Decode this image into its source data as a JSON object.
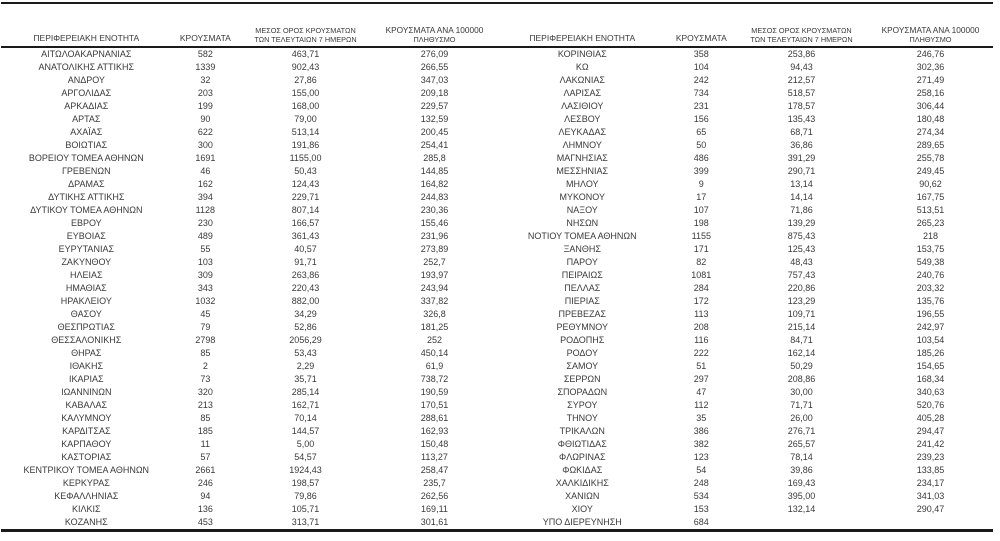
{
  "colors": {
    "background": "#ffffff",
    "text": "#3a3a3a",
    "line": "#1a1a1a"
  },
  "table": {
    "headers": {
      "region": "ΠΕΡΙΦΕΡΕΙΑΚΗ ΕΝΟΤΗΤΑ",
      "cases": "ΚΡΟΥΣΜΑΤΑ",
      "avg7_line1": "ΜΕΣΟΣ ΟΡΟΣ ΚΡΟΥΣΜΑΤΩΝ",
      "avg7_line2": "ΤΩΝ ΤΕΛΕΥΤΑΙΩΝ 7 ΗΜΕΡΩΝ",
      "per100k_line1": "ΚΡΟΥΣΜΑΤΑ ΑΝΑ 100000",
      "per100k_line2": "ΠΛΗΘΥΣΜΟ"
    },
    "left_rows": [
      [
        "ΑΙΤΩΛΟΑΚΑΡΝΑΝΙΑΣ",
        "582",
        "463,71",
        "276,09"
      ],
      [
        "ΑΝΑΤΟΛΙΚΗΣ ΑΤΤΙΚΗΣ",
        "1339",
        "902,43",
        "266,55"
      ],
      [
        "ΑΝΔΡΟΥ",
        "32",
        "27,86",
        "347,03"
      ],
      [
        "ΑΡΓΟΛΙΔΑΣ",
        "203",
        "155,00",
        "209,18"
      ],
      [
        "ΑΡΚΑΔΙΑΣ",
        "199",
        "168,00",
        "229,57"
      ],
      [
        "ΑΡΤΑΣ",
        "90",
        "79,00",
        "132,59"
      ],
      [
        "ΑΧΑΪΑΣ",
        "622",
        "513,14",
        "200,45"
      ],
      [
        "ΒΟΙΩΤΙΑΣ",
        "300",
        "191,86",
        "254,41"
      ],
      [
        "ΒΟΡΕΙΟΥ ΤΟΜΕΑ ΑΘΗΝΩΝ",
        "1691",
        "1155,00",
        "285,8"
      ],
      [
        "ΓΡΕΒΕΝΩΝ",
        "46",
        "50,43",
        "144,85"
      ],
      [
        "ΔΡΑΜΑΣ",
        "162",
        "124,43",
        "164,82"
      ],
      [
        "ΔΥΤΙΚΗΣ ΑΤΤΙΚΗΣ",
        "394",
        "229,71",
        "244,83"
      ],
      [
        "ΔΥΤΙΚΟΥ ΤΟΜΕΑ ΑΘΗΝΩΝ",
        "1128",
        "807,14",
        "230,36"
      ],
      [
        "ΕΒΡΟΥ",
        "230",
        "166,57",
        "155,46"
      ],
      [
        "ΕΥΒΟΙΑΣ",
        "489",
        "361,43",
        "231,96"
      ],
      [
        "ΕΥΡΥΤΑΝΙΑΣ",
        "55",
        "40,57",
        "273,89"
      ],
      [
        "ΖΑΚΥΝΘΟΥ",
        "103",
        "91,71",
        "252,7"
      ],
      [
        "ΗΛΕΙΑΣ",
        "309",
        "263,86",
        "193,97"
      ],
      [
        "ΗΜΑΘΙΑΣ",
        "343",
        "220,43",
        "243,94"
      ],
      [
        "ΗΡΑΚΛΕΙΟΥ",
        "1032",
        "882,00",
        "337,82"
      ],
      [
        "ΘΑΣΟΥ",
        "45",
        "34,29",
        "326,8"
      ],
      [
        "ΘΕΣΠΡΩΤΙΑΣ",
        "79",
        "52,86",
        "181,25"
      ],
      [
        "ΘΕΣΣΑΛΟΝΙΚΗΣ",
        "2798",
        "2056,29",
        "252"
      ],
      [
        "ΘΗΡΑΣ",
        "85",
        "53,43",
        "450,14"
      ],
      [
        "ΙΘΑΚΗΣ",
        "2",
        "2,29",
        "61,9"
      ],
      [
        "ΙΚΑΡΙΑΣ",
        "73",
        "35,71",
        "738,72"
      ],
      [
        "ΙΩΑΝΝΙΝΩΝ",
        "320",
        "285,14",
        "190,59"
      ],
      [
        "ΚΑΒΑΛΑΣ",
        "213",
        "162,71",
        "170,51"
      ],
      [
        "ΚΑΛΥΜΝΟΥ",
        "85",
        "70,14",
        "288,61"
      ],
      [
        "ΚΑΡΔΙΤΣΑΣ",
        "185",
        "144,57",
        "162,93"
      ],
      [
        "ΚΑΡΠΑΘΟΥ",
        "11",
        "5,00",
        "150,48"
      ],
      [
        "ΚΑΣΤΟΡΙΑΣ",
        "57",
        "54,57",
        "113,27"
      ],
      [
        "ΚΕΝΤΡΙΚΟΥ ΤΟΜΕΑ ΑΘΗΝΩΝ",
        "2661",
        "1924,43",
        "258,47"
      ],
      [
        "ΚΕΡΚΥΡΑΣ",
        "246",
        "198,57",
        "235,7"
      ],
      [
        "ΚΕΦΑΛΛΗΝΙΑΣ",
        "94",
        "79,86",
        "262,56"
      ],
      [
        "ΚΙΛΚΙΣ",
        "136",
        "105,71",
        "169,11"
      ],
      [
        "ΚΟΖΑΝΗΣ",
        "453",
        "313,71",
        "301,61"
      ]
    ],
    "right_rows": [
      [
        "ΚΟΡΙΝΘΙΑΣ",
        "358",
        "253,86",
        "246,76"
      ],
      [
        "ΚΩ",
        "104",
        "94,43",
        "302,36"
      ],
      [
        "ΛΑΚΩΝΙΑΣ",
        "242",
        "212,57",
        "271,49"
      ],
      [
        "ΛΑΡΙΣΑΣ",
        "734",
        "518,57",
        "258,16"
      ],
      [
        "ΛΑΣΙΘΙΟΥ",
        "231",
        "178,57",
        "306,44"
      ],
      [
        "ΛΕΣΒΟΥ",
        "156",
        "135,43",
        "180,48"
      ],
      [
        "ΛΕΥΚΑΔΑΣ",
        "65",
        "68,71",
        "274,34"
      ],
      [
        "ΛΗΜΝΟΥ",
        "50",
        "36,86",
        "289,65"
      ],
      [
        "ΜΑΓΝΗΣΙΑΣ",
        "486",
        "391,29",
        "255,78"
      ],
      [
        "ΜΕΣΣΗΝΙΑΣ",
        "399",
        "290,71",
        "249,45"
      ],
      [
        "ΜΗΛΟΥ",
        "9",
        "13,14",
        "90,62"
      ],
      [
        "ΜΥΚΟΝΟΥ",
        "17",
        "14,14",
        "167,75"
      ],
      [
        "ΝΑΞΟΥ",
        "107",
        "71,86",
        "513,51"
      ],
      [
        "ΝΗΣΩΝ",
        "198",
        "139,29",
        "265,23"
      ],
      [
        "ΝΟΤΙΟΥ ΤΟΜΕΑ ΑΘΗΝΩΝ",
        "1155",
        "875,43",
        "218"
      ],
      [
        "ΞΑΝΘΗΣ",
        "171",
        "125,43",
        "153,75"
      ],
      [
        "ΠΑΡΟΥ",
        "82",
        "48,43",
        "549,38"
      ],
      [
        "ΠΕΙΡΑΙΩΣ",
        "1081",
        "757,43",
        "240,76"
      ],
      [
        "ΠΕΛΛΑΣ",
        "284",
        "220,86",
        "203,32"
      ],
      [
        "ΠΙΕΡΙΑΣ",
        "172",
        "123,29",
        "135,76"
      ],
      [
        "ΠΡΕΒΕΖΑΣ",
        "113",
        "109,71",
        "196,55"
      ],
      [
        "ΡΕΘΥΜΝΟΥ",
        "208",
        "215,14",
        "242,97"
      ],
      [
        "ΡΟΔΟΠΗΣ",
        "116",
        "84,71",
        "103,54"
      ],
      [
        "ΡΟΔΟΥ",
        "222",
        "162,14",
        "185,26"
      ],
      [
        "ΣΑΜΟΥ",
        "51",
        "50,29",
        "154,65"
      ],
      [
        "ΣΕΡΡΩΝ",
        "297",
        "208,86",
        "168,34"
      ],
      [
        "ΣΠΟΡΑΔΩΝ",
        "47",
        "30,00",
        "340,63"
      ],
      [
        "ΣΥΡΟΥ",
        "112",
        "71,71",
        "520,76"
      ],
      [
        "ΤΗΝΟΥ",
        "35",
        "26,00",
        "405,28"
      ],
      [
        "ΤΡΙΚΑΛΩΝ",
        "386",
        "276,71",
        "294,47"
      ],
      [
        "ΦΘΙΩΤΙΔΑΣ",
        "382",
        "265,57",
        "241,42"
      ],
      [
        "ΦΛΩΡΙΝΑΣ",
        "123",
        "78,14",
        "239,23"
      ],
      [
        "ΦΩΚΙΔΑΣ",
        "54",
        "39,86",
        "133,85"
      ],
      [
        "ΧΑΛΚΙΔΙΚΗΣ",
        "248",
        "169,43",
        "234,17"
      ],
      [
        "ΧΑΝΙΩΝ",
        "534",
        "395,00",
        "341,03"
      ],
      [
        "ΧΙΟΥ",
        "153",
        "132,14",
        "290,47"
      ],
      [
        "ΥΠΟ ΔΙΕΡΕΥΝΗΣΗ",
        "684",
        "",
        ""
      ]
    ]
  }
}
